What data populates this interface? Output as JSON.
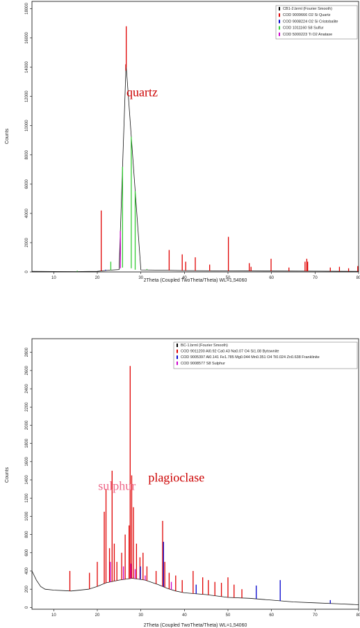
{
  "chart_data": [
    {
      "type": "line",
      "xlabel": "2Theta (Coupled TwoTheta/Theta) WL=1,54060",
      "ylabel": "Counts",
      "xlim": [
        5,
        80
      ],
      "ylim": [
        0,
        18500
      ],
      "x_ticks": [
        10,
        20,
        30,
        40,
        50,
        60,
        70,
        80
      ],
      "y_ticks": [
        0,
        2000,
        4000,
        6000,
        8000,
        10000,
        12000,
        14000,
        16000,
        18000
      ],
      "legend": [
        {
          "label": "CB1-2.brml (Fourier Smooth)",
          "color": "#000000"
        },
        {
          "label": "COD 9009666 O2 Si Quartz",
          "color": "#e00000"
        },
        {
          "label": "COD 9008224 O2 Si Cristobalite",
          "color": "#0000cc"
        },
        {
          "label": "COD 1011160 S8 Sulfur",
          "color": "#33cc33"
        },
        {
          "label": "COD 5000223 Ti O2 Anatase",
          "color": "#cc00cc"
        }
      ],
      "pattern": {
        "x": [
          5,
          10,
          15,
          20,
          22,
          25,
          26.6,
          30,
          35,
          40,
          50,
          60,
          70,
          80
        ],
        "y": [
          40,
          30,
          25,
          40,
          100,
          160,
          14200,
          140,
          120,
          90,
          70,
          60,
          50,
          40
        ]
      },
      "peaks": [
        {
          "x": 20.9,
          "y": 4200,
          "color": "#e00000"
        },
        {
          "x": 26.65,
          "y": 16800,
          "color": "#e00000"
        },
        {
          "x": 26.55,
          "y": 14200,
          "color": "#cc0000"
        },
        {
          "x": 36.5,
          "y": 1500,
          "color": "#e00000"
        },
        {
          "x": 39.5,
          "y": 1200,
          "color": "#e00000"
        },
        {
          "x": 40.3,
          "y": 700,
          "color": "#e00000"
        },
        {
          "x": 42.5,
          "y": 1000,
          "color": "#e00000"
        },
        {
          "x": 45.8,
          "y": 500,
          "color": "#e00000"
        },
        {
          "x": 50.1,
          "y": 2400,
          "color": "#e00000"
        },
        {
          "x": 54.9,
          "y": 600,
          "color": "#e00000"
        },
        {
          "x": 55.3,
          "y": 350,
          "color": "#e00000"
        },
        {
          "x": 59.9,
          "y": 900,
          "color": "#e00000"
        },
        {
          "x": 64.0,
          "y": 300,
          "color": "#e00000"
        },
        {
          "x": 67.7,
          "y": 700,
          "color": "#e00000"
        },
        {
          "x": 68.1,
          "y": 900,
          "color": "#e00000"
        },
        {
          "x": 68.3,
          "y": 700,
          "color": "#e00000"
        },
        {
          "x": 73.5,
          "y": 300,
          "color": "#e00000"
        },
        {
          "x": 75.6,
          "y": 350,
          "color": "#e00000"
        },
        {
          "x": 77.7,
          "y": 250,
          "color": "#e00000"
        },
        {
          "x": 79.8,
          "y": 400,
          "color": "#e00000"
        },
        {
          "x": 21.9,
          "y": 150,
          "color": "#0000cc"
        },
        {
          "x": 23.1,
          "y": 700,
          "color": "#33cc33"
        },
        {
          "x": 25.8,
          "y": 300,
          "color": "#33cc33"
        },
        {
          "x": 27.8,
          "y": 250,
          "color": "#33cc33"
        },
        {
          "x": 28.7,
          "y": 150,
          "color": "#33cc33"
        },
        {
          "x": 31.4,
          "y": 200,
          "color": "#33cc33"
        },
        {
          "x": 15.4,
          "y": 80,
          "color": "#33cc33"
        },
        {
          "x": 25.3,
          "y": 250,
          "color": "#cc00cc"
        },
        {
          "x": 37.8,
          "y": 100,
          "color": "#cc00cc"
        },
        {
          "x": 48.0,
          "y": 80,
          "color": "#cc00cc"
        }
      ],
      "annotation": {
        "text": "quartz",
        "x": 26.7,
        "y": 12000,
        "color": "#cc0000"
      }
    },
    {
      "type": "line",
      "xlabel": "2Theta (Coupled TwoTheta/Theta) WL=1,54060",
      "ylabel": "Counts",
      "xlim": [
        5,
        80
      ],
      "ylim": [
        -20,
        2950
      ],
      "x_ticks": [
        10,
        20,
        30,
        40,
        50,
        60,
        70,
        80
      ],
      "y_ticks": [
        0,
        200,
        400,
        600,
        800,
        1000,
        1200,
        1400,
        1600,
        1800,
        2000,
        2200,
        2400,
        2600,
        2800
      ],
      "legend": [
        {
          "label": "BC-1.brml (Fourier Smooth)",
          "color": "#000000"
        },
        {
          "label": "COD 9011200 Al0.92 Ca0.43 Na0.07 O4 Si1.08 Bytownite",
          "color": "#e00000"
        },
        {
          "label": "COD 9005397 Al0.141 Fe1.785 Mg0.044 Mn0.351 O4 Ti0.024 Zn0.638 Franklinite",
          "color": "#0000cc"
        },
        {
          "label": "COD 9008577 S8 Sulphur",
          "color": "#cc00cc"
        }
      ],
      "pattern": {
        "x": [
          5,
          6,
          7,
          8,
          10,
          14,
          18,
          20,
          22,
          25,
          28,
          31,
          34,
          36,
          38,
          40,
          45,
          50,
          55,
          60,
          65,
          70,
          75,
          80
        ],
        "y": [
          400,
          300,
          230,
          200,
          190,
          180,
          200,
          230,
          270,
          300,
          320,
          300,
          250,
          210,
          180,
          160,
          140,
          110,
          100,
          80,
          60,
          50,
          40,
          30
        ]
      },
      "peaks": [
        {
          "x": 13.7,
          "y": 400,
          "color": "#e00000"
        },
        {
          "x": 18.2,
          "y": 380,
          "color": "#e00000"
        },
        {
          "x": 20.0,
          "y": 500,
          "color": "#e00000"
        },
        {
          "x": 21.6,
          "y": 1050,
          "color": "#e00000"
        },
        {
          "x": 22.0,
          "y": 1300,
          "color": "#e00000"
        },
        {
          "x": 22.8,
          "y": 650,
          "color": "#e00000"
        },
        {
          "x": 23.4,
          "y": 1500,
          "color": "#e00000"
        },
        {
          "x": 23.9,
          "y": 700,
          "color": "#e00000"
        },
        {
          "x": 24.5,
          "y": 500,
          "color": "#e00000"
        },
        {
          "x": 25.6,
          "y": 600,
          "color": "#e00000"
        },
        {
          "x": 26.4,
          "y": 800,
          "color": "#e00000"
        },
        {
          "x": 27.3,
          "y": 900,
          "color": "#e00000"
        },
        {
          "x": 27.55,
          "y": 2650,
          "color": "#e00000"
        },
        {
          "x": 27.9,
          "y": 1450,
          "color": "#e00000"
        },
        {
          "x": 28.3,
          "y": 1100,
          "color": "#e00000"
        },
        {
          "x": 29.0,
          "y": 700,
          "color": "#e00000"
        },
        {
          "x": 29.8,
          "y": 550,
          "color": "#e00000"
        },
        {
          "x": 30.5,
          "y": 600,
          "color": "#e00000"
        },
        {
          "x": 31.4,
          "y": 450,
          "color": "#e00000"
        },
        {
          "x": 33.5,
          "y": 400,
          "color": "#e00000"
        },
        {
          "x": 35.0,
          "y": 950,
          "color": "#e00000"
        },
        {
          "x": 35.5,
          "y": 500,
          "color": "#e00000"
        },
        {
          "x": 36.5,
          "y": 380,
          "color": "#e00000"
        },
        {
          "x": 38.0,
          "y": 350,
          "color": "#e00000"
        },
        {
          "x": 39.5,
          "y": 300,
          "color": "#e00000"
        },
        {
          "x": 42.0,
          "y": 400,
          "color": "#e00000"
        },
        {
          "x": 44.2,
          "y": 330,
          "color": "#e00000"
        },
        {
          "x": 45.5,
          "y": 300,
          "color": "#e00000"
        },
        {
          "x": 47.0,
          "y": 280,
          "color": "#e00000"
        },
        {
          "x": 48.5,
          "y": 270,
          "color": "#e00000"
        },
        {
          "x": 50.0,
          "y": 330,
          "color": "#e00000"
        },
        {
          "x": 51.4,
          "y": 250,
          "color": "#e00000"
        },
        {
          "x": 53.2,
          "y": 200,
          "color": "#e00000"
        },
        {
          "x": 35.2,
          "y": 720,
          "color": "#0000cc"
        },
        {
          "x": 29.9,
          "y": 450,
          "color": "#0000cc"
        },
        {
          "x": 42.7,
          "y": 250,
          "color": "#0000cc"
        },
        {
          "x": 56.5,
          "y": 240,
          "color": "#0000cc"
        },
        {
          "x": 62.0,
          "y": 300,
          "color": "#0000cc"
        },
        {
          "x": 73.5,
          "y": 80,
          "color": "#0000cc"
        },
        {
          "x": 23.0,
          "y": 500,
          "color": "#cc00cc"
        },
        {
          "x": 26.0,
          "y": 450,
          "color": "#cc00cc"
        },
        {
          "x": 27.7,
          "y": 480,
          "color": "#cc00cc"
        },
        {
          "x": 28.7,
          "y": 420,
          "color": "#cc00cc"
        },
        {
          "x": 31.0,
          "y": 350,
          "color": "#cc00cc"
        },
        {
          "x": 37.0,
          "y": 280,
          "color": "#cc00cc"
        }
      ],
      "annotations": [
        {
          "text": "sulphur",
          "x": 20.2,
          "y": 1290,
          "color": "#ee6688"
        },
        {
          "text": "plagioclase",
          "x": 31.7,
          "y": 1380,
          "color": "#cc0000"
        }
      ]
    }
  ]
}
